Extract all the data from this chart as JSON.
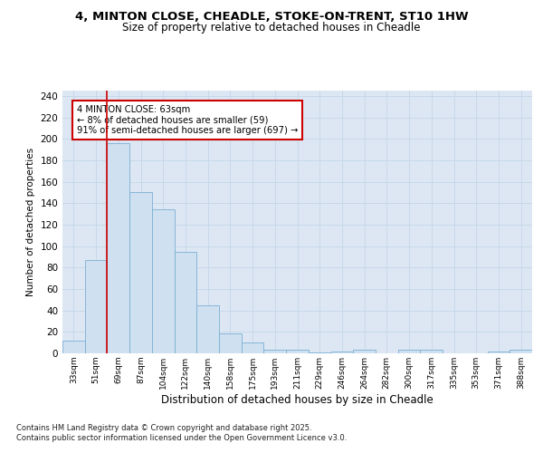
{
  "title_line1": "4, MINTON CLOSE, CHEADLE, STOKE-ON-TRENT, ST10 1HW",
  "title_line2": "Size of property relative to detached houses in Cheadle",
  "xlabel": "Distribution of detached houses by size in Cheadle",
  "ylabel": "Number of detached properties",
  "categories": [
    "33sqm",
    "51sqm",
    "69sqm",
    "87sqm",
    "104sqm",
    "122sqm",
    "140sqm",
    "158sqm",
    "175sqm",
    "193sqm",
    "211sqm",
    "229sqm",
    "246sqm",
    "264sqm",
    "282sqm",
    "300sqm",
    "317sqm",
    "335sqm",
    "353sqm",
    "371sqm",
    "388sqm"
  ],
  "values": [
    12,
    87,
    196,
    150,
    134,
    95,
    45,
    19,
    10,
    3,
    3,
    1,
    2,
    3,
    0,
    3,
    3,
    0,
    0,
    2,
    3
  ],
  "bar_color": "#cfe0f0",
  "bar_edge_color": "#7bafd4",
  "grid_color": "#c8d8ea",
  "background_color": "#dce7f3",
  "vline_color": "#cc0000",
  "annotation_text": "4 MINTON CLOSE: 63sqm\n← 8% of detached houses are smaller (59)\n91% of semi-detached houses are larger (697) →",
  "annotation_box_color": "#ffffff",
  "annotation_box_edge": "#cc0000",
  "footer_text": "Contains HM Land Registry data © Crown copyright and database right 2025.\nContains public sector information licensed under the Open Government Licence v3.0.",
  "ylim": [
    0,
    245
  ],
  "yticks": [
    0,
    20,
    40,
    60,
    80,
    100,
    120,
    140,
    160,
    180,
    200,
    220,
    240
  ]
}
